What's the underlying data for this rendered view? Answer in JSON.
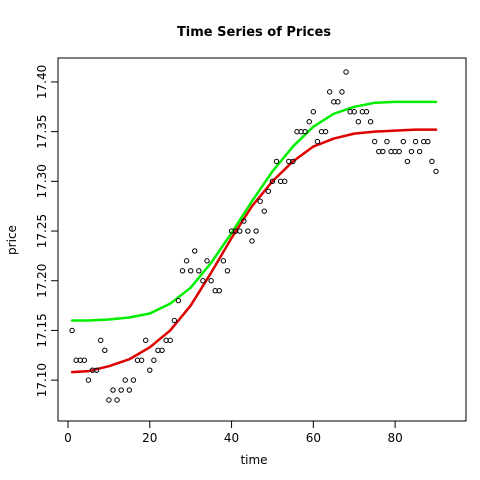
{
  "chart_data": {
    "type": "scatter",
    "title": "Time Series of Prices",
    "xlabel": "time",
    "ylabel": "price",
    "xlim": [
      0,
      90
    ],
    "ylim": [
      17.08,
      17.41
    ],
    "x_ticks": [
      0,
      20,
      40,
      60,
      80
    ],
    "y_ticks": [
      17.1,
      17.15,
      17.2,
      17.25,
      17.3,
      17.35,
      17.4
    ],
    "x_tick_labels": [
      "0",
      "20",
      "40",
      "60",
      "80"
    ],
    "y_tick_labels": [
      "17.10",
      "17.15",
      "17.20",
      "17.25",
      "17.30",
      "17.35",
      "17.40"
    ],
    "grid": false,
    "legend": "none",
    "points": {
      "color": "#000000",
      "x": [
        1,
        2,
        3,
        4,
        5,
        6,
        7,
        8,
        9,
        10,
        11,
        12,
        13,
        14,
        15,
        16,
        17,
        18,
        19,
        20,
        21,
        22,
        23,
        24,
        25,
        26,
        27,
        28,
        29,
        30,
        31,
        32,
        33,
        34,
        35,
        36,
        37,
        38,
        39,
        40,
        41,
        42,
        43,
        44,
        45,
        46,
        47,
        48,
        49,
        50,
        51,
        52,
        53,
        54,
        55,
        56,
        57,
        58,
        59,
        60,
        61,
        62,
        63,
        64,
        65,
        66,
        67,
        68,
        69,
        70,
        71,
        72,
        73,
        74,
        75,
        76,
        77,
        78,
        79,
        80,
        81,
        82,
        83,
        84,
        85,
        86,
        87,
        88,
        89,
        90
      ],
      "y": [
        17.15,
        17.12,
        17.12,
        17.12,
        17.1,
        17.11,
        17.11,
        17.14,
        17.13,
        17.08,
        17.09,
        17.08,
        17.09,
        17.1,
        17.09,
        17.1,
        17.12,
        17.12,
        17.14,
        17.11,
        17.12,
        17.13,
        17.13,
        17.14,
        17.14,
        17.16,
        17.18,
        17.21,
        17.22,
        17.21,
        17.23,
        17.21,
        17.2,
        17.22,
        17.2,
        17.19,
        17.19,
        17.22,
        17.21,
        17.25,
        17.25,
        17.25,
        17.26,
        17.25,
        17.24,
        17.25,
        17.28,
        17.27,
        17.29,
        17.3,
        17.32,
        17.3,
        17.3,
        17.32,
        17.32,
        17.35,
        17.35,
        17.35,
        17.36,
        17.37,
        17.34,
        17.35,
        17.35,
        17.39,
        17.38,
        17.38,
        17.39,
        17.41,
        17.37,
        17.37,
        17.36,
        17.37,
        17.37,
        17.36,
        17.34,
        17.33,
        17.33,
        17.34,
        17.33,
        17.33,
        17.33,
        17.34,
        17.32,
        17.33,
        17.34,
        17.33,
        17.34,
        17.34,
        17.32,
        17.31
      ]
    },
    "series": [
      {
        "color": "#00ee00",
        "x": [
          1,
          5,
          10,
          15,
          20,
          25,
          30,
          35,
          40,
          45,
          50,
          55,
          60,
          65,
          70,
          75,
          80,
          85,
          90
        ],
        "values": [
          17.16,
          17.16,
          17.161,
          17.163,
          17.167,
          17.177,
          17.193,
          17.218,
          17.248,
          17.28,
          17.31,
          17.335,
          17.355,
          17.368,
          17.375,
          17.379,
          17.38,
          17.38,
          17.38
        ]
      },
      {
        "color": "#dd0000",
        "x": [
          1,
          5,
          10,
          15,
          20,
          25,
          30,
          35,
          40,
          45,
          50,
          55,
          60,
          65,
          70,
          75,
          80,
          85,
          90
        ],
        "values": [
          17.108,
          17.109,
          17.114,
          17.121,
          17.133,
          17.15,
          17.175,
          17.208,
          17.243,
          17.275,
          17.3,
          17.32,
          17.335,
          17.343,
          17.348,
          17.35,
          17.351,
          17.352,
          17.352
        ]
      }
    ]
  }
}
